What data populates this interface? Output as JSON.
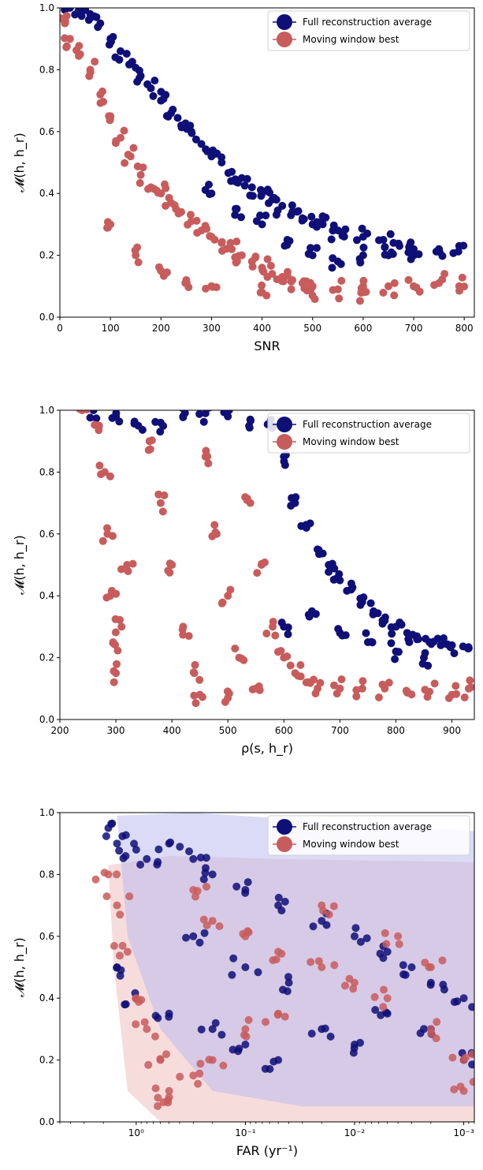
{
  "colors": {
    "full": "#0f0f78",
    "moving": "#c85c5c",
    "band_full": "#b8b8f0",
    "band_moving": "#f2c4c4"
  },
  "chart_data": [
    {
      "type": "scatter",
      "xlabel": "SNR",
      "ylabel": "𝓜(h, h_r)",
      "xlim": [
        0,
        820
      ],
      "ylim": [
        0.0,
        1.0
      ],
      "xticks": [
        0,
        100,
        200,
        300,
        400,
        500,
        600,
        700,
        800
      ],
      "yticks": [
        0.0,
        0.2,
        0.4,
        0.6,
        0.8,
        1.0
      ],
      "xscale": "linear",
      "legend": "top-right",
      "series": [
        {
          "name": "Full reconstruction average",
          "color": "#0f0f78",
          "points": [
            [
              20,
              1.0
            ],
            [
              40,
              0.99
            ],
            [
              60,
              0.98
            ],
            [
              80,
              0.95
            ],
            [
              100,
              0.9
            ],
            [
              120,
              0.86
            ],
            [
              140,
              0.82
            ],
            [
              160,
              0.78
            ],
            [
              180,
              0.74
            ],
            [
              200,
              0.7
            ],
            [
              220,
              0.66
            ],
            [
              240,
              0.62
            ],
            [
              260,
              0.6
            ],
            [
              280,
              0.56
            ],
            [
              300,
              0.52
            ],
            [
              320,
              0.5
            ],
            [
              340,
              0.47
            ],
            [
              360,
              0.45
            ],
            [
              380,
              0.42
            ],
            [
              400,
              0.4
            ],
            [
              420,
              0.38
            ],
            [
              440,
              0.36
            ],
            [
              460,
              0.34
            ],
            [
              480,
              0.32
            ],
            [
              500,
              0.3
            ],
            [
              520,
              0.3
            ],
            [
              540,
              0.28
            ],
            [
              560,
              0.27
            ],
            [
              600,
              0.26
            ],
            [
              640,
              0.25
            ],
            [
              660,
              0.24
            ],
            [
              700,
              0.22
            ],
            [
              750,
              0.22
            ],
            [
              790,
              0.23
            ],
            [
              300,
              0.4
            ],
            [
              350,
              0.35
            ],
            [
              400,
              0.3
            ],
            [
              450,
              0.25
            ],
            [
              500,
              0.2
            ],
            [
              550,
              0.18
            ],
            [
              600,
              0.2
            ],
            [
              650,
              0.2
            ],
            [
              700,
              0.2
            ]
          ]
        },
        {
          "name": "Moving window best",
          "color": "#c85c5c",
          "points": [
            [
              10,
              0.95
            ],
            [
              20,
              0.9
            ],
            [
              40,
              0.85
            ],
            [
              60,
              0.8
            ],
            [
              80,
              0.72
            ],
            [
              100,
              0.65
            ],
            [
              120,
              0.58
            ],
            [
              140,
              0.52
            ],
            [
              160,
              0.46
            ],
            [
              180,
              0.42
            ],
            [
              200,
              0.4
            ],
            [
              220,
              0.37
            ],
            [
              240,
              0.34
            ],
            [
              260,
              0.31
            ],
            [
              280,
              0.28
            ],
            [
              300,
              0.26
            ],
            [
              320,
              0.24
            ],
            [
              340,
              0.22
            ],
            [
              360,
              0.2
            ],
            [
              380,
              0.18
            ],
            [
              400,
              0.16
            ],
            [
              420,
              0.14
            ],
            [
              440,
              0.13
            ],
            [
              460,
              0.12
            ],
            [
              480,
              0.11
            ],
            [
              500,
              0.1
            ],
            [
              550,
              0.09
            ],
            [
              600,
              0.1
            ],
            [
              650,
              0.1
            ],
            [
              700,
              0.1
            ],
            [
              750,
              0.11
            ],
            [
              790,
              0.1
            ],
            [
              100,
              0.3
            ],
            [
              150,
              0.2
            ],
            [
              200,
              0.15
            ],
            [
              250,
              0.12
            ],
            [
              300,
              0.1
            ],
            [
              400,
              0.08
            ],
            [
              500,
              0.07
            ],
            [
              600,
              0.08
            ]
          ]
        }
      ]
    },
    {
      "type": "scatter",
      "xlabel": "ρ(s, h_r)",
      "ylabel": "𝓜(h, h_r)",
      "xlim": [
        200,
        940
      ],
      "ylim": [
        0.0,
        1.0
      ],
      "xticks": [
        200,
        300,
        400,
        500,
        600,
        700,
        800,
        900
      ],
      "yticks": [
        0.0,
        0.2,
        0.4,
        0.6,
        0.8,
        1.0
      ],
      "xscale": "linear",
      "legend": "top-right",
      "series": [
        {
          "name": "Full reconstruction average",
          "color": "#0f0f78",
          "points": [
            [
              260,
              1.0
            ],
            [
              300,
              0.98
            ],
            [
              340,
              0.95
            ],
            [
              380,
              0.96
            ],
            [
              420,
              0.98
            ],
            [
              460,
              0.99
            ],
            [
              500,
              0.98
            ],
            [
              540,
              0.97
            ],
            [
              580,
              0.95
            ],
            [
              600,
              0.85
            ],
            [
              620,
              0.7
            ],
            [
              640,
              0.62
            ],
            [
              660,
              0.55
            ],
            [
              680,
              0.5
            ],
            [
              700,
              0.45
            ],
            [
              720,
              0.42
            ],
            [
              740,
              0.38
            ],
            [
              760,
              0.35
            ],
            [
              780,
              0.32
            ],
            [
              800,
              0.3
            ],
            [
              820,
              0.28
            ],
            [
              840,
              0.26
            ],
            [
              860,
              0.25
            ],
            [
              880,
              0.24
            ],
            [
              900,
              0.24
            ],
            [
              930,
              0.23
            ],
            [
              600,
              0.3
            ],
            [
              650,
              0.35
            ],
            [
              700,
              0.28
            ],
            [
              750,
              0.25
            ],
            [
              800,
              0.22
            ],
            [
              850,
              0.2
            ]
          ]
        },
        {
          "name": "Moving window best",
          "color": "#c85c5c",
          "points": [
            [
              240,
              1.0
            ],
            [
              270,
              0.95
            ],
            [
              280,
              0.8
            ],
            [
              285,
              0.6
            ],
            [
              290,
              0.4
            ],
            [
              295,
              0.25
            ],
            [
              300,
              0.15
            ],
            [
              310,
              0.3
            ],
            [
              320,
              0.5
            ],
            [
              360,
              0.9
            ],
            [
              380,
              0.7
            ],
            [
              400,
              0.5
            ],
            [
              420,
              0.3
            ],
            [
              440,
              0.15
            ],
            [
              460,
              0.85
            ],
            [
              480,
              0.6
            ],
            [
              500,
              0.4
            ],
            [
              520,
              0.2
            ],
            [
              540,
              0.7
            ],
            [
              560,
              0.5
            ],
            [
              580,
              0.3
            ],
            [
              600,
              0.2
            ],
            [
              620,
              0.15
            ],
            [
              640,
              0.12
            ],
            [
              660,
              0.1
            ],
            [
              700,
              0.1
            ],
            [
              740,
              0.1
            ],
            [
              780,
              0.1
            ],
            [
              820,
              0.09
            ],
            [
              860,
              0.09
            ],
            [
              900,
              0.08
            ],
            [
              930,
              0.1
            ],
            [
              450,
              0.08
            ],
            [
              500,
              0.07
            ],
            [
              550,
              0.1
            ]
          ]
        }
      ]
    },
    {
      "type": "scatter",
      "xlabel": "FAR (yr⁻¹)",
      "ylabel": "𝓜(h, h_r)",
      "xlim": [
        5.0,
        0.0008
      ],
      "ylim": [
        0.0,
        1.0
      ],
      "xticks": [
        1.0,
        0.1,
        0.01,
        0.001
      ],
      "xtick_labels": [
        "10⁰",
        "10⁻¹",
        "10⁻²",
        "10⁻³"
      ],
      "yticks": [
        0.0,
        0.2,
        0.4,
        0.6,
        0.8,
        1.0
      ],
      "xscale": "log",
      "legend": "top-right",
      "series": [
        {
          "name": "Full reconstruction average",
          "color": "#0f0f78",
          "points": [
            [
              1.8,
              0.95
            ],
            [
              1.5,
              0.9
            ],
            [
              1.0,
              0.88
            ],
            [
              0.8,
              0.85
            ],
            [
              0.5,
              0.9
            ],
            [
              0.3,
              0.85
            ],
            [
              0.2,
              0.8
            ],
            [
              0.1,
              0.75
            ],
            [
              0.05,
              0.7
            ],
            [
              0.02,
              0.65
            ],
            [
              0.01,
              0.6
            ],
            [
              0.005,
              0.55
            ],
            [
              0.003,
              0.5
            ],
            [
              0.002,
              0.45
            ],
            [
              0.001,
              0.4
            ],
            [
              0.001,
              0.2
            ],
            [
              0.002,
              0.3
            ],
            [
              0.005,
              0.35
            ],
            [
              0.01,
              0.25
            ],
            [
              0.02,
              0.3
            ],
            [
              0.05,
              0.2
            ],
            [
              0.1,
              0.25
            ],
            [
              0.2,
              0.3
            ],
            [
              0.5,
              0.35
            ],
            [
              1.0,
              0.4
            ],
            [
              1.5,
              0.5
            ],
            [
              0.3,
              0.6
            ],
            [
              0.1,
              0.5
            ],
            [
              0.04,
              0.45
            ]
          ]
        },
        {
          "name": "Moving window best",
          "color": "#c85c5c",
          "points": [
            [
              1.8,
              0.8
            ],
            [
              1.5,
              0.7
            ],
            [
              1.2,
              0.55
            ],
            [
              1.0,
              0.4
            ],
            [
              0.8,
              0.3
            ],
            [
              0.6,
              0.2
            ],
            [
              0.5,
              0.1
            ],
            [
              0.3,
              0.75
            ],
            [
              0.2,
              0.65
            ],
            [
              0.1,
              0.6
            ],
            [
              0.05,
              0.55
            ],
            [
              0.02,
              0.5
            ],
            [
              0.01,
              0.45
            ],
            [
              0.005,
              0.4
            ],
            [
              0.002,
              0.3
            ],
            [
              0.001,
              0.2
            ],
            [
              0.001,
              0.1
            ],
            [
              0.004,
              0.6
            ],
            [
              0.02,
              0.7
            ],
            [
              0.05,
              0.35
            ],
            [
              0.1,
              0.3
            ],
            [
              0.2,
              0.2
            ],
            [
              0.3,
              0.15
            ],
            [
              0.5,
              0.08
            ],
            [
              0.002,
              0.5
            ]
          ]
        }
      ]
    }
  ]
}
